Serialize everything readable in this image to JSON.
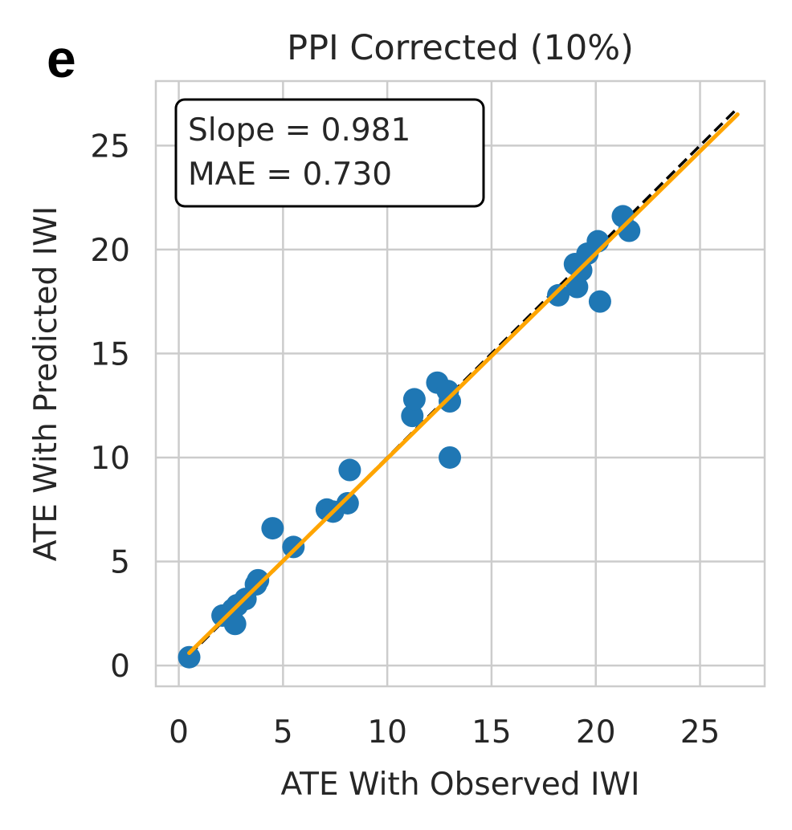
{
  "panel_label": "e",
  "chart_data": {
    "type": "scatter",
    "title": "PPI Corrected (10%)",
    "xlabel": "ATE With Observed IWI",
    "ylabel": "ATE With Predicted IWI",
    "xlim": [
      -1.1,
      28.1
    ],
    "ylim": [
      -1.0,
      28.1
    ],
    "xticks": [
      0,
      5,
      10,
      15,
      20,
      25
    ],
    "yticks": [
      0,
      5,
      10,
      15,
      20,
      25
    ],
    "xtick_labels": [
      "0",
      "5",
      "10",
      "15",
      "20",
      "25"
    ],
    "ytick_labels": [
      "0",
      "5",
      "10",
      "15",
      "20",
      "25"
    ],
    "grid": true,
    "annotation": {
      "lines": [
        "Slope = 0.981",
        "MAE = 0.730"
      ],
      "placement": "top-left"
    },
    "identity_line": {
      "x": [
        0.5,
        26.8
      ],
      "y": [
        0.5,
        26.8
      ],
      "style": "dashed",
      "color": "#000000"
    },
    "fit_line": {
      "x": [
        0.5,
        26.8
      ],
      "y": [
        0.6,
        26.5
      ],
      "color": "#ffa500"
    },
    "series": [
      {
        "name": "points",
        "color": "#1f77b4",
        "x": [
          0.5,
          2.1,
          2.6,
          2.7,
          2.8,
          3.2,
          3.7,
          3.8,
          4.5,
          5.5,
          7.1,
          7.4,
          8.1,
          8.2,
          11.2,
          11.3,
          12.4,
          12.9,
          13.0,
          13.0,
          18.2,
          19.0,
          19.1,
          19.3,
          19.6,
          20.1,
          20.2,
          21.3,
          21.6
        ],
        "y": [
          0.4,
          2.4,
          2.7,
          2.0,
          2.9,
          3.2,
          3.9,
          4.1,
          6.6,
          5.7,
          7.5,
          7.4,
          7.8,
          9.4,
          12.0,
          12.8,
          13.6,
          13.2,
          12.7,
          10.0,
          17.8,
          19.3,
          18.2,
          19.0,
          19.8,
          20.4,
          17.5,
          21.6,
          20.9
        ]
      }
    ]
  },
  "colors": {
    "points": "#1f77b4",
    "fit": "#ffa500",
    "identity": "#000000",
    "grid": "#cccccc",
    "text": "#262626"
  }
}
